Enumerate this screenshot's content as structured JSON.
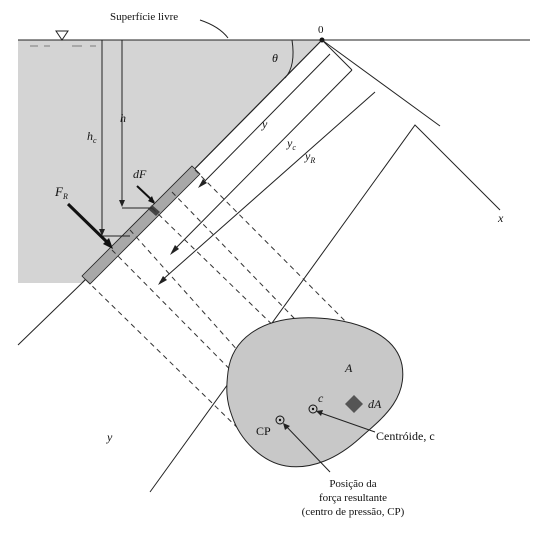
{
  "labels": {
    "free_surface": "Superfície livre",
    "origin": "0",
    "theta": "θ",
    "h": "h",
    "hc": "h",
    "hc_sub": "c",
    "y": "y",
    "yc": "y",
    "yc_sub": "c",
    "yr": "y",
    "yr_sub": "R",
    "dF": "dF",
    "fr": "F",
    "fr_sub": "R",
    "x_axis": "x",
    "y_axis": "y",
    "area": "A",
    "dA": "dA",
    "c_point": "c",
    "cp": "CP",
    "centroid": "Centróide, c",
    "resultant_line1": "Posição da",
    "resultant_line2": "força resultante",
    "resultant_line3": "(centro de pressão, CP)"
  },
  "colors": {
    "water": "#d4d4d4",
    "plate": "#a8a8a8",
    "line": "#222222"
  }
}
